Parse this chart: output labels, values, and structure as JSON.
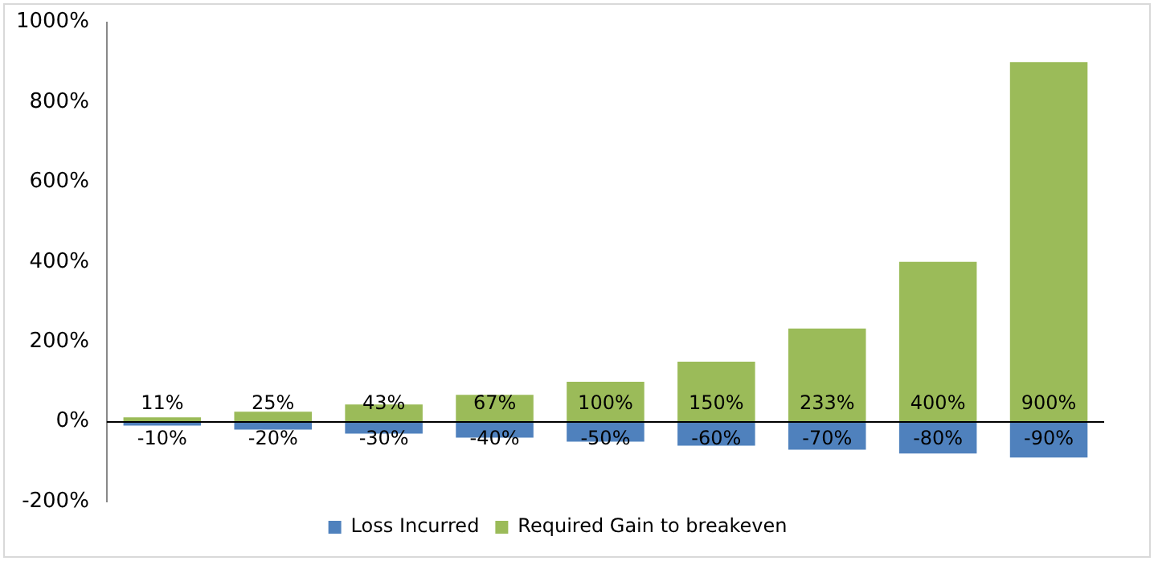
{
  "chart_data": {
    "type": "bar",
    "stacked": true,
    "categories": [
      null,
      null,
      null,
      null,
      null,
      null,
      null,
      null,
      null
    ],
    "series": [
      {
        "name": "Loss Incurred",
        "color": "#4f81bd",
        "values": [
          -10,
          -20,
          -30,
          -40,
          -50,
          -60,
          -70,
          -80,
          -90
        ],
        "value_labels": [
          "-10%",
          "-20%",
          "-30%",
          "-40%",
          "-50%",
          "-60%",
          "-70%",
          "-80%",
          "-90%"
        ]
      },
      {
        "name": "Required Gain to breakeven",
        "color": "#9bbb59",
        "values": [
          11,
          25,
          43,
          67,
          100,
          150,
          233,
          400,
          900
        ],
        "value_labels": [
          "11%",
          "25%",
          "43%",
          "67%",
          "100%",
          "150%",
          "233%",
          "400%",
          "900%"
        ]
      }
    ],
    "ylim": [
      -200,
      1000
    ],
    "yticks": [
      {
        "value": -200,
        "label": "-200%"
      },
      {
        "value": 0,
        "label": "0%"
      },
      {
        "value": 200,
        "label": "200%"
      },
      {
        "value": 400,
        "label": "400%"
      },
      {
        "value": 600,
        "label": "600%"
      },
      {
        "value": 800,
        "label": "800%"
      },
      {
        "value": 1000,
        "label": "1000%"
      }
    ],
    "ref_lines": [
      {
        "axis": "y",
        "value": 0,
        "color": "#000000"
      }
    ],
    "grid": false,
    "legend": "bottom"
  }
}
